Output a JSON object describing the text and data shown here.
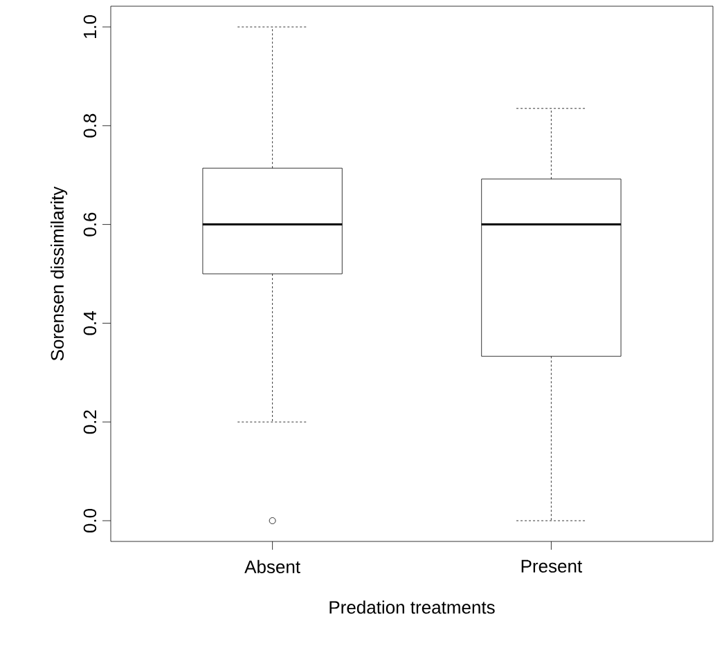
{
  "chart_data": {
    "type": "box",
    "xlabel": "Predation treatments",
    "ylabel": "Sorensen dissimilarity",
    "categories": [
      "Absent",
      "Present"
    ],
    "boxes": [
      {
        "low": 0.2,
        "q1": 0.5,
        "median": 0.6,
        "q3": 0.714,
        "high": 1.0,
        "outliers": [
          0
        ]
      },
      {
        "low": 0,
        "q1": 0.333,
        "median": 0.6,
        "q3": 0.692,
        "high": 0.835
      }
    ],
    "ylim": [
      -0.042,
      1.042
    ],
    "yticks": [
      {
        "value": 0,
        "label": "0.0"
      },
      {
        "value": 0.2,
        "label": "0.2"
      },
      {
        "value": 0.4,
        "label": "0.4"
      },
      {
        "value": 0.6,
        "label": "0.6"
      },
      {
        "value": 0.8,
        "label": "0.8"
      },
      {
        "value": 1.0,
        "label": "1.0"
      }
    ]
  }
}
